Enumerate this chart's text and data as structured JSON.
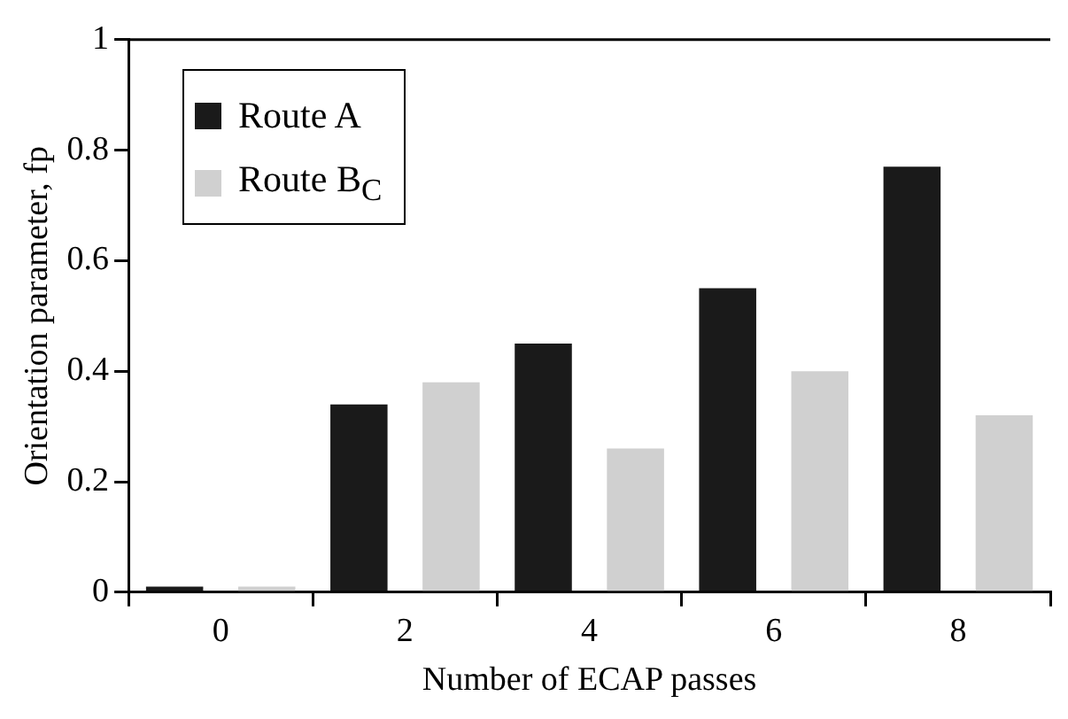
{
  "chart_data": {
    "type": "bar",
    "xlabel": "Number of ECAP passes",
    "ylabel": "Orientation parameter, fp",
    "categories": [
      "0",
      "2",
      "4",
      "6",
      "8"
    ],
    "series": [
      {
        "name": "Route A",
        "color": "#1a1a1a",
        "values": [
          0.01,
          0.34,
          0.45,
          0.55,
          0.77
        ]
      },
      {
        "name": "Route B$_{C}$",
        "color": "#d0d0d0",
        "values": [
          0.01,
          0.38,
          0.26,
          0.4,
          0.32
        ]
      }
    ],
    "ylim": [
      0,
      1
    ],
    "yticks": [
      0,
      0.2,
      0.4,
      0.6,
      0.8,
      1
    ],
    "legend": "top left"
  }
}
